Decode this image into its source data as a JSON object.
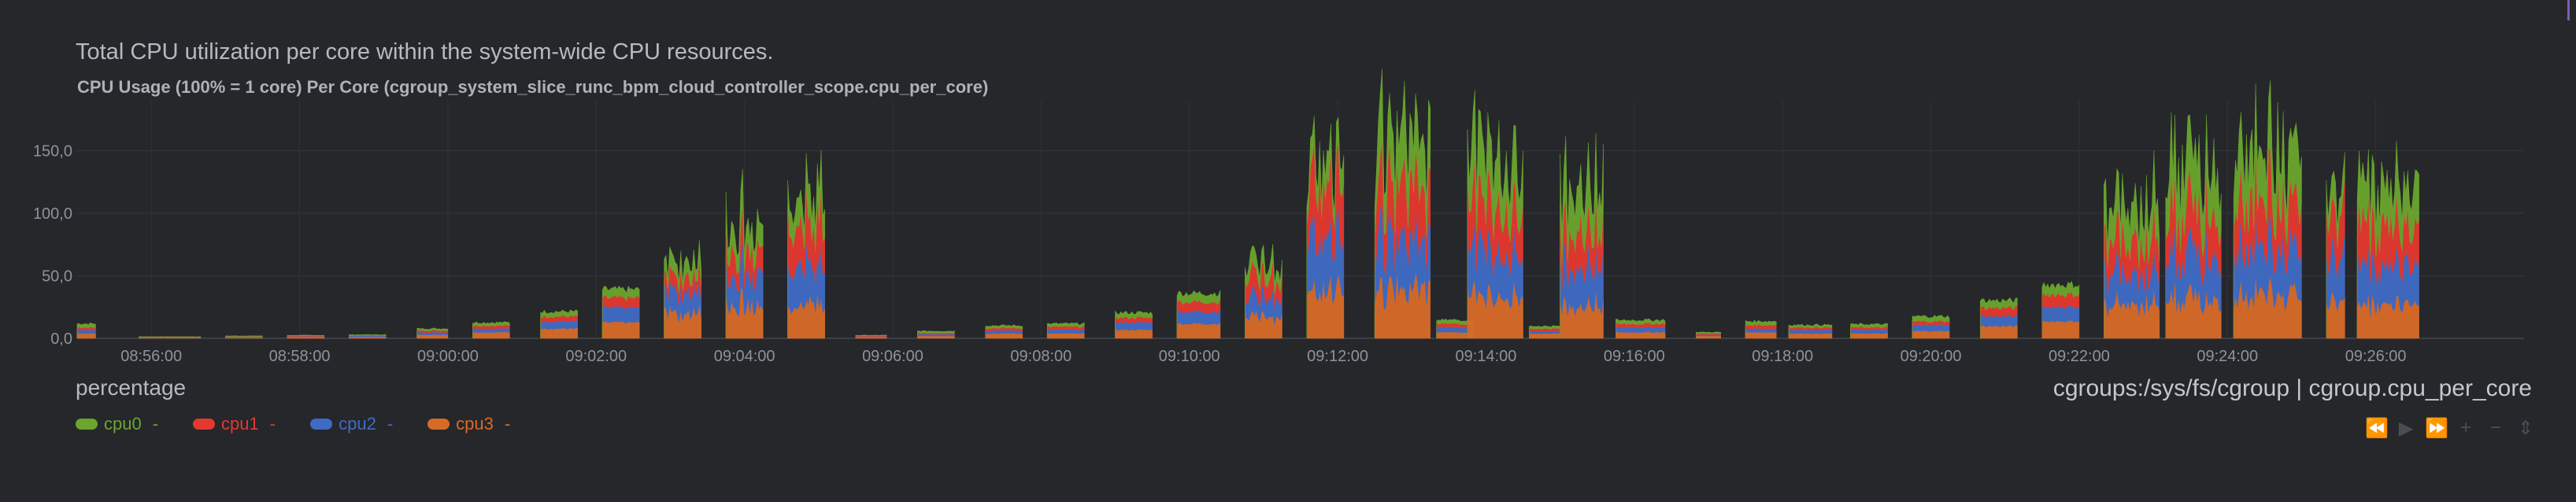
{
  "info_text": "Total CPU utilization per core within the system-wide CPU resources.",
  "chart_title": "CPU Usage (100% = 1 core) Per Core (cgroup_system_slice_runc_bpm_cloud_controller_scope.cpu_per_core)",
  "units": "percentage",
  "context": "cgroups:/sys/fs/cgroup | cgroup.cpu_per_core",
  "legend": [
    {
      "label": "cpu0",
      "value": "-",
      "color": "#6aa52d"
    },
    {
      "label": "cpu1",
      "value": "-",
      "color": "#e5382f"
    },
    {
      "label": "cpu2",
      "value": "-",
      "color": "#3f6bc5"
    },
    {
      "label": "cpu3",
      "value": "-",
      "color": "#d86a28"
    }
  ],
  "toolbox_icons": [
    "rewind-icon",
    "play-icon",
    "forward-icon",
    "zoom-in-icon",
    "zoom-out-icon"
  ],
  "chart_data": {
    "type": "area",
    "stacked": true,
    "ylim": [
      0,
      190
    ],
    "y_ticks": [
      0,
      50,
      100,
      150
    ],
    "y_tick_labels": [
      "0,0",
      "50,0",
      "100,0",
      "150,0"
    ],
    "x_tick_labels": [
      "08:56:00",
      "08:58:00",
      "09:00:00",
      "09:02:00",
      "09:04:00",
      "09:06:00",
      "09:08:00",
      "09:10:00",
      "09:12:00",
      "09:14:00",
      "09:16:00",
      "09:18:00",
      "09:20:00",
      "09:22:00",
      "09:24:00",
      "09:26:00"
    ],
    "grid": true,
    "time_range": [
      "08:55:00",
      "09:28:00"
    ],
    "bursts": [
      {
        "start": "08:55:00",
        "end": "08:55:15",
        "cpu0": 3,
        "cpu1": 2,
        "cpu2": 3,
        "cpu3": 4
      },
      {
        "start": "08:55:50",
        "end": "08:56:40",
        "cpu0": 0.3,
        "cpu1": 0.3,
        "cpu2": 0.3,
        "cpu3": 0.5
      },
      {
        "start": "08:57:00",
        "end": "08:57:30",
        "cpu0": 0.5,
        "cpu1": 0.5,
        "cpu2": 0.5,
        "cpu3": 0.5
      },
      {
        "start": "08:57:50",
        "end": "08:58:20",
        "cpu0": 0.5,
        "cpu1": 0.5,
        "cpu2": 0.5,
        "cpu3": 1
      },
      {
        "start": "08:58:40",
        "end": "08:59:10",
        "cpu0": 0.5,
        "cpu1": 0.5,
        "cpu2": 1,
        "cpu3": 1
      },
      {
        "start": "08:59:35",
        "end": "09:00:00",
        "cpu0": 1.5,
        "cpu1": 1.5,
        "cpu2": 2,
        "cpu3": 3
      },
      {
        "start": "09:00:20",
        "end": "09:00:50",
        "cpu0": 2.5,
        "cpu1": 2.5,
        "cpu2": 3,
        "cpu3": 5
      },
      {
        "start": "09:01:15",
        "end": "09:01:45",
        "cpu0": 4,
        "cpu1": 4,
        "cpu2": 6,
        "cpu3": 8
      },
      {
        "start": "09:02:05",
        "end": "09:02:35",
        "cpu0": 7,
        "cpu1": 8,
        "cpu2": 12,
        "cpu3": 13
      },
      {
        "start": "09:02:55",
        "end": "09:03:25",
        "cpu0": 12,
        "cpu1": 13,
        "cpu2": 18,
        "cpu3": 22
      },
      {
        "start": "09:03:45",
        "end": "09:04:15",
        "cpu0": 20,
        "cpu1": 22,
        "cpu2": 28,
        "cpu3": 28
      },
      {
        "start": "09:04:35",
        "end": "09:05:05",
        "cpu0": 22,
        "cpu1": 35,
        "cpu2": 35,
        "cpu3": 28
      },
      {
        "start": "09:05:30",
        "end": "09:05:55",
        "cpu0": 0.5,
        "cpu1": 0.5,
        "cpu2": 0.5,
        "cpu3": 1
      },
      {
        "start": "09:06:20",
        "end": "09:06:50",
        "cpu0": 1.5,
        "cpu1": 1,
        "cpu2": 1.5,
        "cpu3": 2
      },
      {
        "start": "09:07:15",
        "end": "09:07:45",
        "cpu0": 2,
        "cpu1": 2,
        "cpu2": 2.5,
        "cpu3": 4
      },
      {
        "start": "09:08:05",
        "end": "09:08:35",
        "cpu0": 2.5,
        "cpu1": 2.5,
        "cpu2": 3,
        "cpu3": 4
      },
      {
        "start": "09:09:00",
        "end": "09:09:30",
        "cpu0": 4,
        "cpu1": 4,
        "cpu2": 6,
        "cpu3": 7
      },
      {
        "start": "09:09:50",
        "end": "09:10:25",
        "cpu0": 7,
        "cpu1": 8,
        "cpu2": 10,
        "cpu3": 12
      },
      {
        "start": "09:10:45",
        "end": "09:11:15",
        "cpu0": 12,
        "cpu1": 16,
        "cpu2": 16,
        "cpu3": 18
      },
      {
        "start": "09:11:35",
        "end": "09:12:05",
        "cpu0": 18,
        "cpu1": 40,
        "cpu2": 42,
        "cpu3": 38
      },
      {
        "start": "09:12:30",
        "end": "09:13:15",
        "cpu0": 40,
        "cpu1": 40,
        "cpu2": 40,
        "cpu3": 40
      },
      {
        "start": "09:13:20",
        "end": "09:13:50",
        "cpu0": 3,
        "cpu1": 3,
        "cpu2": 4,
        "cpu3": 5
      },
      {
        "start": "09:13:45",
        "end": "09:14:30",
        "cpu0": 40,
        "cpu1": 38,
        "cpu2": 38,
        "cpu3": 36
      },
      {
        "start": "09:14:35",
        "end": "09:15:00",
        "cpu0": 2,
        "cpu1": 2,
        "cpu2": 2,
        "cpu3": 4
      },
      {
        "start": "09:15:00",
        "end": "09:15:35",
        "cpu0": 34,
        "cpu1": 30,
        "cpu2": 32,
        "cpu3": 26
      },
      {
        "start": "09:15:45",
        "end": "09:16:25",
        "cpu0": 3,
        "cpu1": 3,
        "cpu2": 4,
        "cpu3": 5
      },
      {
        "start": "09:16:50",
        "end": "09:17:10",
        "cpu0": 1,
        "cpu1": 1,
        "cpu2": 1,
        "cpu3": 2
      },
      {
        "start": "09:17:30",
        "end": "09:17:55",
        "cpu0": 3,
        "cpu1": 3,
        "cpu2": 3,
        "cpu3": 5
      },
      {
        "start": "09:18:05",
        "end": "09:18:40",
        "cpu0": 2,
        "cpu1": 2,
        "cpu2": 3,
        "cpu3": 4
      },
      {
        "start": "09:18:55",
        "end": "09:19:25",
        "cpu0": 2.5,
        "cpu1": 2,
        "cpu2": 3,
        "cpu3": 4
      },
      {
        "start": "09:19:45",
        "end": "09:20:15",
        "cpu0": 4,
        "cpu1": 3,
        "cpu2": 5,
        "cpu3": 6
      },
      {
        "start": "09:20:40",
        "end": "09:21:10",
        "cpu0": 6,
        "cpu1": 7,
        "cpu2": 8,
        "cpu3": 10
      },
      {
        "start": "09:21:30",
        "end": "09:22:00",
        "cpu0": 8,
        "cpu1": 10,
        "cpu2": 12,
        "cpu3": 14
      },
      {
        "start": "09:22:20",
        "end": "09:23:05",
        "cpu0": 28,
        "cpu1": 26,
        "cpu2": 26,
        "cpu3": 28
      },
      {
        "start": "09:23:10",
        "end": "09:23:55",
        "cpu0": 40,
        "cpu1": 36,
        "cpu2": 36,
        "cpu3": 34
      },
      {
        "start": "09:24:05",
        "end": "09:25:00",
        "cpu0": 40,
        "cpu1": 38,
        "cpu2": 38,
        "cpu3": 36
      },
      {
        "start": "09:25:20",
        "end": "09:25:35",
        "cpu0": 18,
        "cpu1": 34,
        "cpu2": 36,
        "cpu3": 30
      },
      {
        "start": "09:25:45",
        "end": "09:26:35",
        "cpu0": 32,
        "cpu1": 32,
        "cpu2": 32,
        "cpu3": 28
      }
    ]
  }
}
